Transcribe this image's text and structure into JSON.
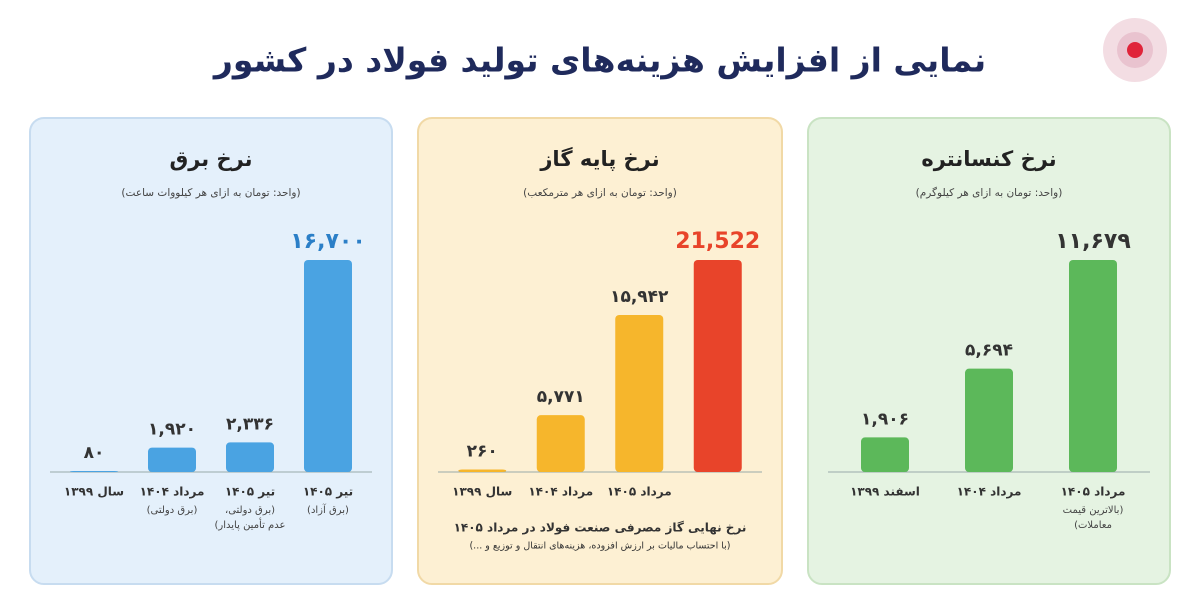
{
  "title": "نمایی از افزایش هزینه‌های تولید فولاد در کشور",
  "chart_data": [
    {
      "type": "bar",
      "title": "نرخ برق",
      "subtitle": "(واحد: تومان به ازای هر کیلووات ساعت)",
      "categories": [
        "سال ۱۳۹۹",
        "مرداد ۱۴۰۴",
        "تیر ۱۴۰۵",
        "تیر ۱۴۰۵"
      ],
      "category_notes": [
        null,
        [
          "(برق دولتی)"
        ],
        [
          "(برق دولتی،",
          "عدم تأمین پایدار)"
        ],
        [
          "(برق آزاد)"
        ]
      ],
      "values": [
        80,
        1920,
        2336,
        16700
      ],
      "value_labels": [
        "۸۰",
        "۱,۹۲۰",
        "۲,۳۳۶",
        "۱۶,۷۰۰"
      ],
      "colors": [
        "#4aa3e2",
        "#4aa3e2",
        "#4aa3e2",
        "#4aa3e2"
      ]
    },
    {
      "type": "bar",
      "title": "نرخ پایه گاز",
      "subtitle": "(واحد: تومان به ازای هر مترمکعب)",
      "categories": [
        "سال ۱۳۹۹",
        "مرداد ۱۴۰۴",
        "مرداد ۱۴۰۵",
        null
      ],
      "category_notes": [
        null,
        null,
        null,
        null
      ],
      "values": [
        260,
        5771,
        15942,
        21522
      ],
      "value_labels": [
        "۲۶۰",
        "۵,۷۷۱",
        "۱۵,۹۴۲",
        "21,522"
      ],
      "colors": [
        "#f6b62c",
        "#f6b62c",
        "#f6b62c",
        "#e8442a"
      ],
      "annotation": [
        "نرخ نهایی گاز مصرفی صنعت فولاد در مرداد ۱۴۰۵",
        "(با احتساب مالیات بر ارزش افزوده، هزینه‌های انتقال و توزیع و ...)"
      ]
    },
    {
      "type": "bar",
      "title": "نرخ کنسانتره",
      "subtitle": "(واحد: تومان به ازای هر کیلوگرم)",
      "categories": [
        "اسفند ۱۳۹۹",
        "مرداد ۱۴۰۴",
        "مرداد ۱۴۰۵"
      ],
      "category_notes": [
        null,
        null,
        [
          "(بالاترین قیمت",
          "معاملات)"
        ]
      ],
      "values": [
        1906,
        5694,
        11679
      ],
      "value_labels": [
        "۱,۹۰۶",
        "۵,۶۹۴",
        "۱۱,۶۷۹"
      ],
      "colors": [
        "#5cb85a",
        "#5cb85a",
        "#5cb85a"
      ]
    }
  ]
}
